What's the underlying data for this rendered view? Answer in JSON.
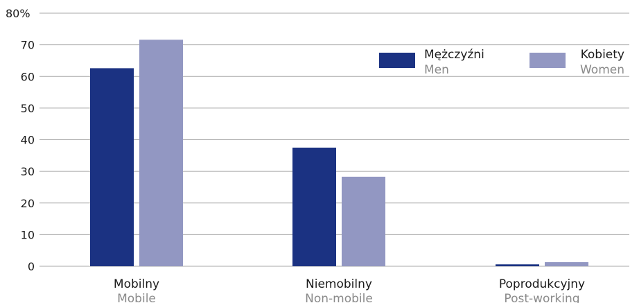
{
  "chart_data": {
    "type": "bar",
    "y_unit_suffix": "%",
    "ylim": [
      0,
      80
    ],
    "yticks": [
      0,
      10,
      20,
      30,
      40,
      50,
      60,
      70,
      80
    ],
    "grid": true,
    "legend_position": "top-right",
    "categories": [
      {
        "label": "Mobilny",
        "sublabel": "Mobile"
      },
      {
        "label": "Niemobilny",
        "sublabel": "Non-mobile"
      },
      {
        "label": "Poprodukcyjny",
        "sublabel": "Post-working"
      }
    ],
    "series": [
      {
        "name": "Mężczyźni",
        "subname": "Men",
        "color": "#1b3282",
        "values": [
          62.6,
          37.5,
          0.6
        ]
      },
      {
        "name": "Kobiety",
        "subname": "Women",
        "color": "#9297c2",
        "values": [
          71.6,
          28.3,
          1.3
        ]
      }
    ]
  }
}
